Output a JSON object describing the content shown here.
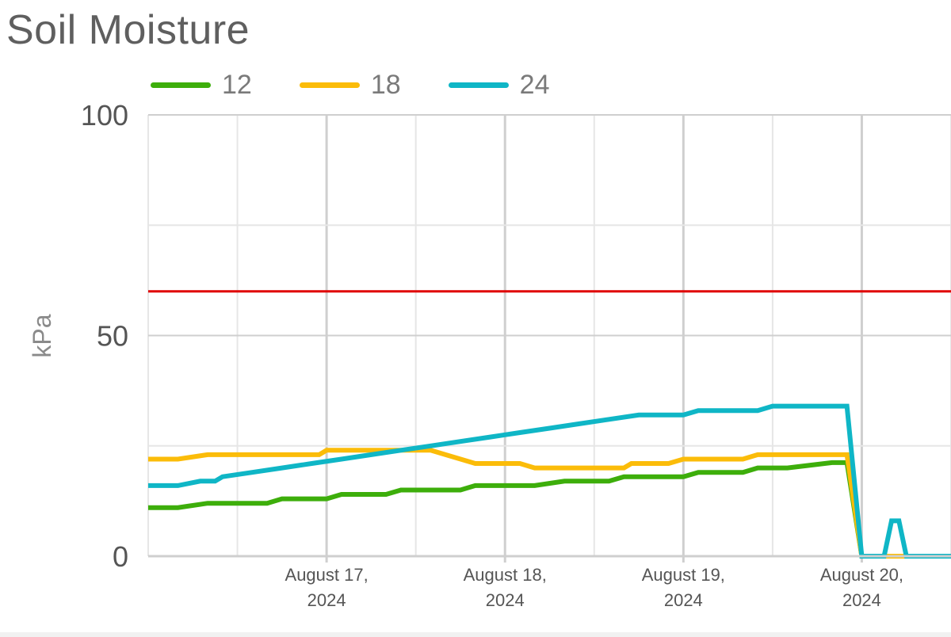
{
  "chart_data": {
    "type": "line",
    "title": "Soil Moisture",
    "ylabel": "kPa",
    "ylim": [
      0,
      100
    ],
    "yticks": [
      0,
      50,
      100
    ],
    "xlim": [
      "2024-08-16 00:00",
      "2024-08-20 12:00"
    ],
    "xticks": [
      {
        "at": "2024-08-17",
        "label": [
          "August 17,",
          "2024"
        ]
      },
      {
        "at": "2024-08-18",
        "label": [
          "August 18,",
          "2024"
        ]
      },
      {
        "at": "2024-08-19",
        "label": [
          "August 19,",
          "2024"
        ]
      },
      {
        "at": "2024-08-20",
        "label": [
          "August 20,",
          "2024"
        ]
      }
    ],
    "grid": true,
    "legend": "top-left",
    "threshold": {
      "value": 60,
      "color": "#e00000"
    },
    "series": [
      {
        "name": "12",
        "color": "#3dae0b",
        "points": [
          [
            "2024-08-16 00:00",
            11
          ],
          [
            "2024-08-16 04:00",
            11
          ],
          [
            "2024-08-16 08:00",
            12
          ],
          [
            "2024-08-16 16:00",
            12
          ],
          [
            "2024-08-16 18:00",
            13
          ],
          [
            "2024-08-17 00:00",
            13
          ],
          [
            "2024-08-17 02:00",
            14
          ],
          [
            "2024-08-17 08:00",
            14
          ],
          [
            "2024-08-17 10:00",
            15
          ],
          [
            "2024-08-17 18:00",
            15
          ],
          [
            "2024-08-17 20:00",
            16
          ],
          [
            "2024-08-18 04:00",
            16
          ],
          [
            "2024-08-18 08:00",
            17
          ],
          [
            "2024-08-18 14:00",
            17
          ],
          [
            "2024-08-18 16:00",
            18
          ],
          [
            "2024-08-19 00:00",
            18
          ],
          [
            "2024-08-19 02:00",
            19
          ],
          [
            "2024-08-19 08:00",
            19
          ],
          [
            "2024-08-19 10:00",
            20
          ],
          [
            "2024-08-19 14:00",
            20
          ],
          [
            "2024-08-19 20:00",
            21.2
          ],
          [
            "2024-08-19 22:00",
            21.2
          ],
          [
            "2024-08-20 00:00",
            0
          ],
          [
            "2024-08-20 12:00",
            0
          ]
        ]
      },
      {
        "name": "18",
        "color": "#fbbc09",
        "points": [
          [
            "2024-08-16 00:00",
            22
          ],
          [
            "2024-08-16 04:00",
            22
          ],
          [
            "2024-08-16 08:00",
            23
          ],
          [
            "2024-08-16 23:00",
            23
          ],
          [
            "2024-08-17 00:00",
            24
          ],
          [
            "2024-08-17 14:00",
            24
          ],
          [
            "2024-08-17 16:00",
            23
          ],
          [
            "2024-08-17 20:00",
            21
          ],
          [
            "2024-08-18 02:00",
            21
          ],
          [
            "2024-08-18 04:00",
            20
          ],
          [
            "2024-08-18 16:00",
            20
          ],
          [
            "2024-08-18 17:00",
            21
          ],
          [
            "2024-08-18 22:00",
            21
          ],
          [
            "2024-08-19 00:00",
            22
          ],
          [
            "2024-08-19 08:00",
            22
          ],
          [
            "2024-08-19 10:00",
            23
          ],
          [
            "2024-08-19 22:00",
            23
          ],
          [
            "2024-08-20 00:00",
            0
          ],
          [
            "2024-08-20 12:00",
            0
          ]
        ]
      },
      {
        "name": "24",
        "color": "#0fb6c6",
        "points": [
          [
            "2024-08-16 00:00",
            16
          ],
          [
            "2024-08-16 04:00",
            16
          ],
          [
            "2024-08-16 07:00",
            17
          ],
          [
            "2024-08-16 09:00",
            17
          ],
          [
            "2024-08-16 10:00",
            18
          ],
          [
            "2024-08-16 14:00",
            19
          ],
          [
            "2024-08-16 18:00",
            20
          ],
          [
            "2024-08-16 22:00",
            21
          ],
          [
            "2024-08-17 02:00",
            22
          ],
          [
            "2024-08-17 06:00",
            23
          ],
          [
            "2024-08-17 10:00",
            24
          ],
          [
            "2024-08-17 14:00",
            25
          ],
          [
            "2024-08-17 18:00",
            26
          ],
          [
            "2024-08-17 22:00",
            27
          ],
          [
            "2024-08-18 02:00",
            28
          ],
          [
            "2024-08-18 06:00",
            29
          ],
          [
            "2024-08-18 10:00",
            30
          ],
          [
            "2024-08-18 14:00",
            31
          ],
          [
            "2024-08-18 18:00",
            32
          ],
          [
            "2024-08-19 00:00",
            32
          ],
          [
            "2024-08-19 02:00",
            33
          ],
          [
            "2024-08-19 10:00",
            33
          ],
          [
            "2024-08-19 12:00",
            34
          ],
          [
            "2024-08-19 22:00",
            34
          ],
          [
            "2024-08-20 00:00",
            0
          ],
          [
            "2024-08-20 03:00",
            0
          ],
          [
            "2024-08-20 04:00",
            8
          ],
          [
            "2024-08-20 05:00",
            8
          ],
          [
            "2024-08-20 06:00",
            0
          ],
          [
            "2024-08-20 12:00",
            0
          ]
        ]
      }
    ]
  }
}
